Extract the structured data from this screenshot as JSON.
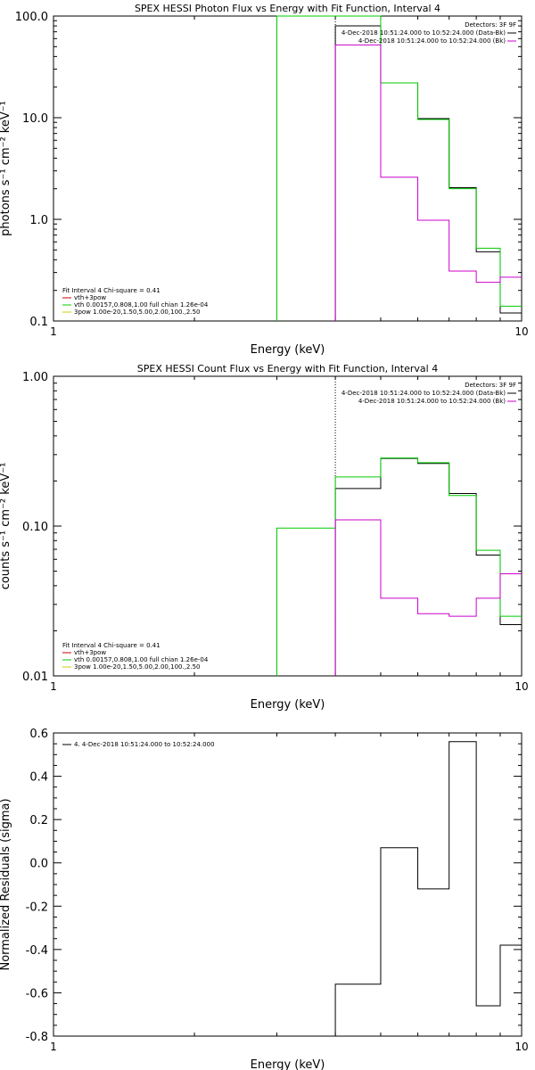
{
  "chart_data": [
    {
      "type": "line",
      "title": "SPEX HESSI Photon Flux vs Energy with Fit Function, Interval 4",
      "xlabel": "Energy (keV)",
      "ylabel": "photons s⁻¹ cm⁻² keV⁻¹",
      "xscale": "log",
      "yscale": "log",
      "xlim": [
        1,
        10
      ],
      "ylim": [
        0.1,
        100
      ],
      "x_tick_labels": [
        "1",
        "10"
      ],
      "y_tick_labels": [
        "0.1",
        "1.0",
        "10.0",
        "100.0"
      ],
      "legend_right": {
        "title": "Detectors: 3F 9F",
        "entries": [
          {
            "text": "4-Dec-2018 10:51:24.000 to 10:52:24.000 (Data-Bk)",
            "color": "#000000"
          },
          {
            "text": "4-Dec-2018 10:51:24.000 to 10:52:24.000 (Bk)",
            "color": "#cc00cc"
          }
        ]
      },
      "legend_left": {
        "title": "Fit Interval  4    Chi-square = 0.41",
        "entries": [
          {
            "text": "vth+3pow",
            "color": "#cc0000"
          },
          {
            "text": "vth 0.00157,0.808,1.00   full chian 1.26e-04",
            "color": "#00cc00"
          },
          {
            "text": "3pow 1.00e-20,1.50,5.00,2.00,100.,2.50",
            "color": "#cccc00"
          }
        ]
      },
      "series": [
        {
          "color": "#000000",
          "bins": [
            [
              4.0,
              5.0,
              80
            ],
            [
              5.0,
              6.0,
              22
            ],
            [
              6.0,
              7.0,
              9.8
            ],
            [
              7.0,
              8.0,
              2.05
            ],
            [
              8.0,
              9.0,
              0.48
            ],
            [
              9.0,
              10.0,
              0.12
            ]
          ]
        },
        {
          "color": "#00cc00",
          "bins": [
            [
              3.0,
              4.0,
              100
            ],
            [
              4.0,
              5.0,
              100
            ],
            [
              5.0,
              6.0,
              22
            ],
            [
              6.0,
              7.0,
              9.6
            ],
            [
              7.0,
              8.0,
              2.0
            ],
            [
              8.0,
              9.0,
              0.52
            ],
            [
              9.0,
              10.0,
              0.14
            ]
          ]
        },
        {
          "color": "#cc00cc",
          "bins": [
            [
              4.0,
              5.0,
              52
            ],
            [
              5.0,
              6.0,
              2.6
            ],
            [
              6.0,
              7.0,
              0.98
            ],
            [
              7.0,
              8.0,
              0.31
            ],
            [
              8.0,
              9.0,
              0.24
            ],
            [
              9.0,
              10.0,
              0.27
            ]
          ]
        }
      ]
    },
    {
      "type": "line",
      "title": "SPEX HESSI Count Flux vs Energy with Fit Function, Interval 4",
      "xlabel": "Energy (keV)",
      "ylabel": "counts s⁻¹ cm⁻² keV⁻¹",
      "xscale": "log",
      "yscale": "log",
      "xlim": [
        1,
        10
      ],
      "ylim": [
        0.01,
        1
      ],
      "x_tick_labels": [
        "1",
        "10"
      ],
      "y_tick_labels": [
        "0.01",
        "0.10",
        "1.00"
      ],
      "legend_right": {
        "title": "Detectors: 3F 9F",
        "entries": [
          {
            "text": "4-Dec-2018 10:51:24.000 to 10:52:24.000 (Data-Bk)",
            "color": "#000000"
          },
          {
            "text": "4-Dec-2018 10:51:24.000 to 10:52:24.000 (Bk)",
            "color": "#cc00cc"
          }
        ]
      },
      "legend_left": {
        "title": "Fit Interval  4    Chi-square = 0.41",
        "entries": [
          {
            "text": "vth+3pow",
            "color": "#cc0000"
          },
          {
            "text": "vth 0.00157,0.808,1.00   full chian 1.26e-04",
            "color": "#00cc00"
          },
          {
            "text": "3pow 1.00e-20,1.50,5.00,2.00,100.,2.50",
            "color": "#cccc00"
          }
        ]
      },
      "series": [
        {
          "color": "#000000",
          "bins": [
            [
              4.0,
              5.0,
              0.178
            ],
            [
              5.0,
              6.0,
              0.283
            ],
            [
              6.0,
              7.0,
              0.262
            ],
            [
              7.0,
              8.0,
              0.165
            ],
            [
              8.0,
              9.0,
              0.064
            ],
            [
              9.0,
              10.0,
              0.022
            ]
          ]
        },
        {
          "color": "#00cc00",
          "bins": [
            [
              3.0,
              4.0,
              0.097
            ],
            [
              4.0,
              5.0,
              0.213
            ],
            [
              5.0,
              6.0,
              0.285
            ],
            [
              6.0,
              7.0,
              0.265
            ],
            [
              7.0,
              8.0,
              0.16
            ],
            [
              8.0,
              9.0,
              0.069
            ],
            [
              9.0,
              10.0,
              0.025
            ]
          ]
        },
        {
          "color": "#cc00cc",
          "bins": [
            [
              4.0,
              5.0,
              0.11
            ],
            [
              5.0,
              6.0,
              0.033
            ],
            [
              6.0,
              7.0,
              0.026
            ],
            [
              7.0,
              8.0,
              0.025
            ],
            [
              8.0,
              9.0,
              0.033
            ],
            [
              9.0,
              10.0,
              0.048
            ]
          ]
        }
      ]
    },
    {
      "type": "line",
      "title": "",
      "xlabel": "Energy (keV)",
      "ylabel": "Normalized Residuals (sigma)",
      "xscale": "log",
      "yscale": "linear",
      "xlim": [
        1,
        10
      ],
      "ylim": [
        -0.8,
        0.6
      ],
      "x_tick_labels": [
        "1",
        "10"
      ],
      "y_tick_labels": [
        "-0.8",
        "-0.6",
        "-0.4",
        "-0.2",
        "0.0",
        "0.2",
        "0.4",
        "0.6"
      ],
      "legend_left": {
        "title": "",
        "entries": [
          {
            "text": "4.  4-Dec-2018 10:51:24.000 to 10:52:24.000",
            "color": "#000000"
          }
        ]
      },
      "series": [
        {
          "color": "#000000",
          "bins": [
            [
              4.0,
              5.0,
              -0.56
            ],
            [
              5.0,
              6.0,
              0.07
            ],
            [
              6.0,
              7.0,
              -0.12
            ],
            [
              7.0,
              8.0,
              0.56
            ],
            [
              8.0,
              9.0,
              -0.66
            ],
            [
              9.0,
              10.0,
              -0.38
            ]
          ]
        }
      ]
    }
  ]
}
